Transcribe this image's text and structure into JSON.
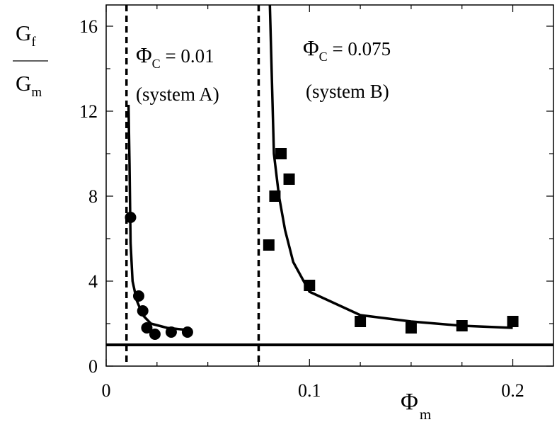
{
  "chart_data": {
    "type": "scatter",
    "title": "",
    "x_axis": {
      "label": {
        "main": "Φ",
        "sub": "m"
      },
      "range": [
        0,
        0.22
      ],
      "ticks": [
        0,
        0.1,
        0.2
      ],
      "tick_labels": [
        "0",
        "0.1",
        "0.2"
      ],
      "minor_step": 0.025
    },
    "y_axis": {
      "label": {
        "numerator_main": "G",
        "numerator_sub": "f",
        "denominator_main": "G",
        "denominator_sub": "m"
      },
      "range": [
        0,
        17
      ],
      "ticks": [
        0,
        4,
        8,
        12,
        16
      ],
      "tick_labels": [
        "0",
        "4",
        "8",
        "12",
        "16"
      ],
      "minor_step": 2
    },
    "grid": false,
    "series": [
      {
        "marker": "circle",
        "x": [
          0.012,
          0.016,
          0.018,
          0.02,
          0.024,
          0.032,
          0.04
        ],
        "y": [
          7.0,
          3.3,
          2.6,
          1.8,
          1.5,
          1.6,
          1.6
        ]
      },
      {
        "marker": "square",
        "x": [
          0.08,
          0.083,
          0.086,
          0.09,
          0.1,
          0.125,
          0.15,
          0.175,
          0.2
        ],
        "y": [
          5.7,
          8.0,
          10.0,
          8.8,
          3.8,
          2.1,
          1.8,
          1.9,
          2.1
        ]
      }
    ],
    "fit_curves": [
      {
        "x": [
          0.011,
          0.0115,
          0.012,
          0.013,
          0.015,
          0.018,
          0.022,
          0.03,
          0.04
        ],
        "y": [
          12.3,
          9.5,
          5.8,
          4.0,
          3.1,
          2.4,
          2.0,
          1.8,
          1.7
        ]
      },
      {
        "x": [
          0.0805,
          0.0825,
          0.085,
          0.088,
          0.092,
          0.1,
          0.125,
          0.15,
          0.175,
          0.2
        ],
        "y": [
          17.0,
          10.0,
          8.0,
          6.4,
          4.9,
          3.5,
          2.4,
          2.1,
          1.9,
          1.8
        ]
      }
    ],
    "reference_lines": {
      "horizontal_y": 1.0,
      "vertical_dashed_x": [
        0.01,
        0.075
      ]
    },
    "annotations": [
      {
        "main": "Φ",
        "sub": "C",
        "rest": " = 0.01",
        "line2": "(system A)"
      },
      {
        "main": "Φ",
        "sub": "C",
        "rest": " = 0.075",
        "line2": "(system B)"
      }
    ]
  }
}
